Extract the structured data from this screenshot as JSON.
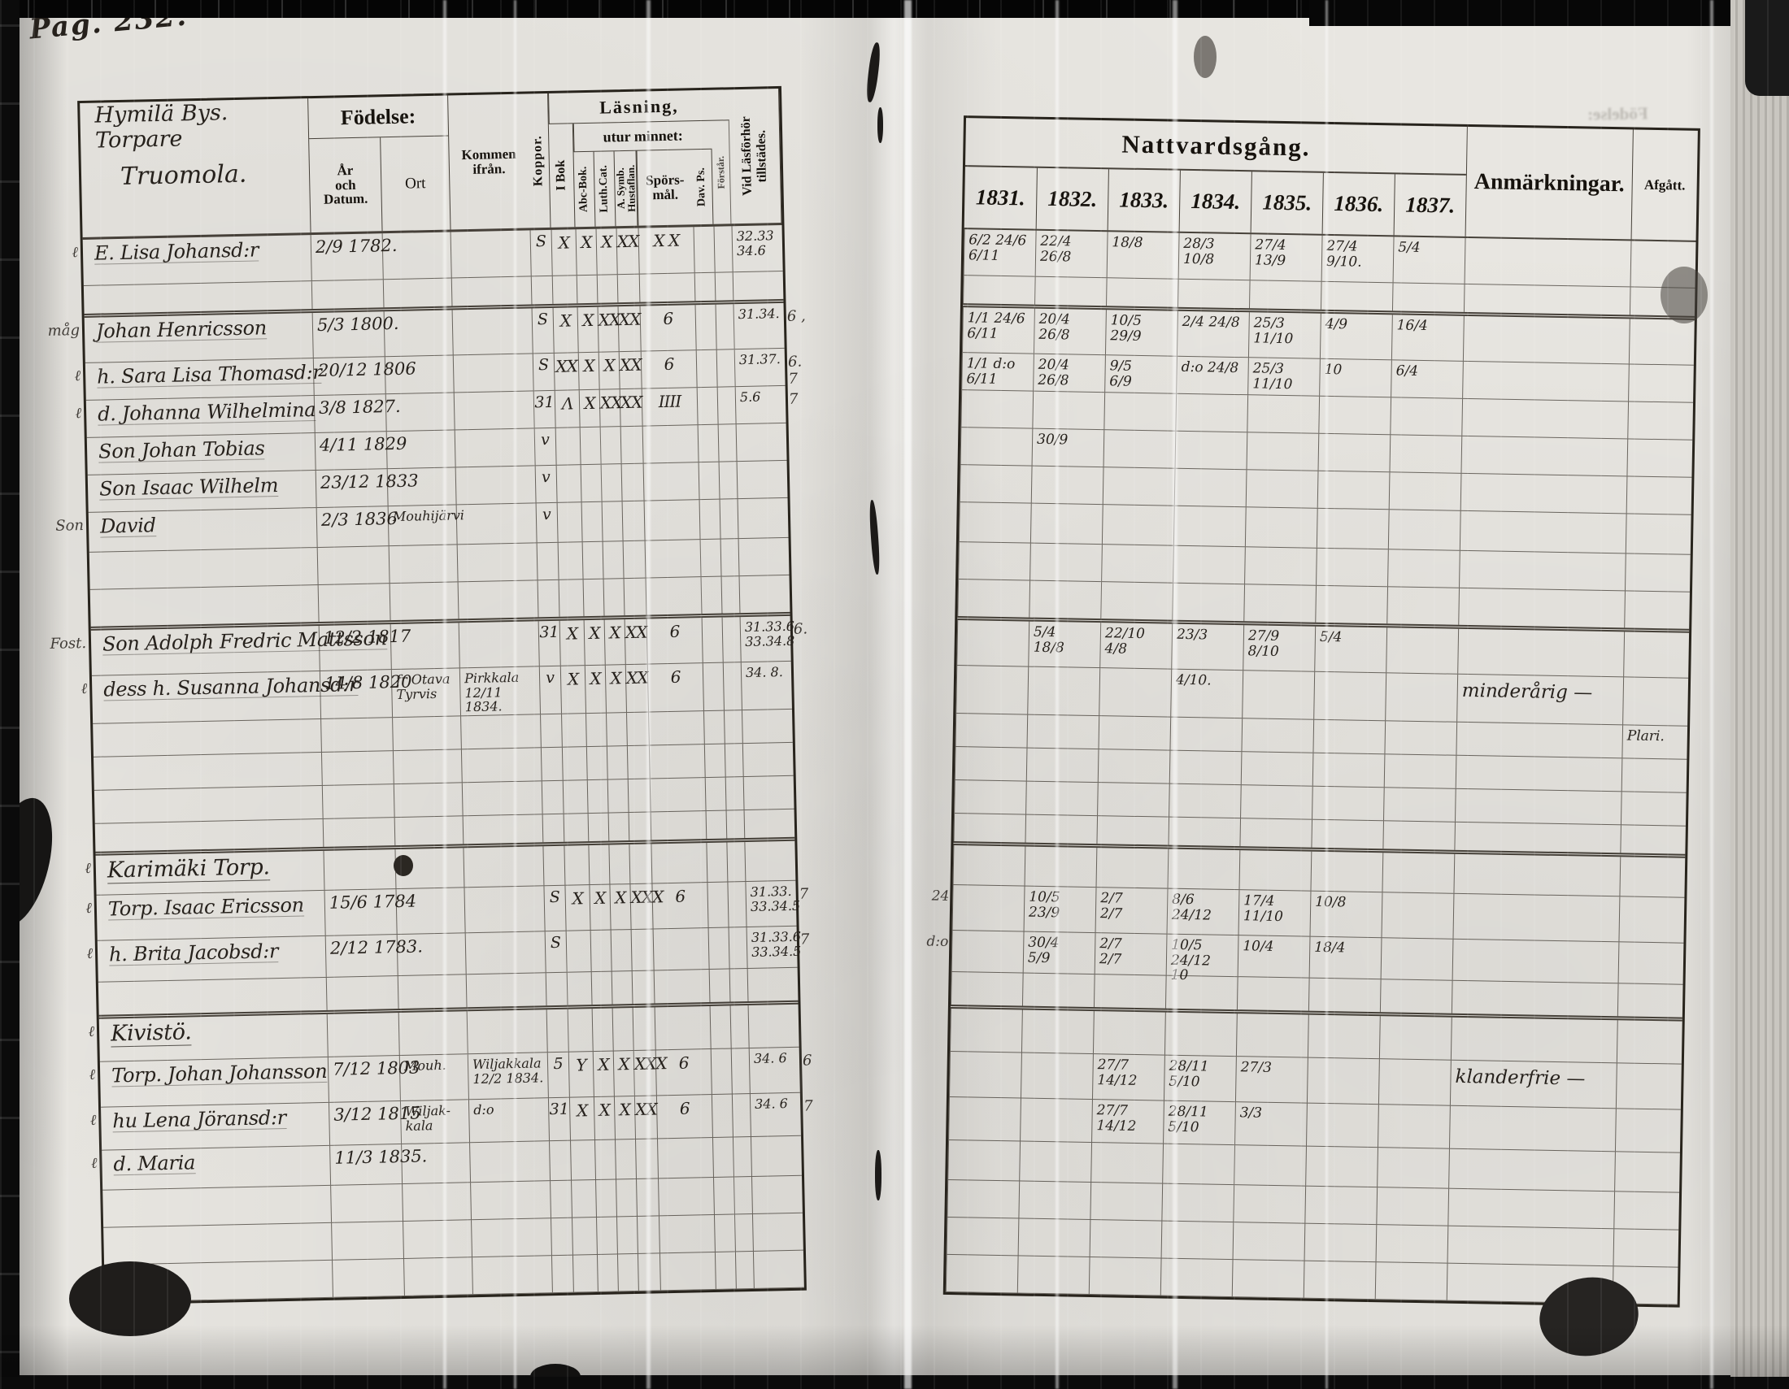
{
  "page": {
    "label": "Pag. 232."
  },
  "artifacts": {
    "bleed_text": "Födelse:"
  },
  "left_table": {
    "title_lines": [
      "Hymilä Bys.",
      "Torpare",
      "Truomola."
    ],
    "headers": {
      "fodelse": "Födelse:",
      "ar": "År\noch\nDatum.",
      "ort": "Ort",
      "kommen": "Kommen\nifrån.",
      "koppor": "Koppor.",
      "lasning": "Läsning,",
      "utur": "utur minnet:",
      "ibok": "I Bok",
      "abc": "Abc-Bok.",
      "luth": "Luth.Cat.",
      "hust": "A. Symb.\nHustaflan.",
      "spors": "Spörs-\nmål.",
      "davps": "Dav. Ps.",
      "extra": "Förstår.",
      "lasforhor": "Vid Läsförhör\ntillstädes."
    }
  },
  "right_table": {
    "title": "Nattvardsgång.",
    "years": [
      "1831.",
      "1832.",
      "1833.",
      "1834.",
      "1835.",
      "1836.",
      "1837."
    ],
    "anm": "Anmärkningar.",
    "afgatt": "Afgått."
  },
  "rows": [
    {
      "lm": "ℓ",
      "name": "E. Lisa Johansd:r",
      "date": "2/9 1782.",
      "koppor": "S",
      "cells": [
        "X",
        "X",
        "X",
        "XX",
        "X X",
        "",
        ""
      ],
      "lf": "32.33\n34.6",
      "r": {
        "y": [
          "6/2 24/6\n6/11",
          "22/4\n26/8",
          "18/8",
          "28/3\n10/8",
          "27/4\n13/9",
          "27/4 9/10.",
          "5/4"
        ]
      }
    },
    {},
    {
      "lm": "måg",
      "name": "Johan Henricsson",
      "date": "5/3 1800.",
      "koppor": "S",
      "cells": [
        "X",
        "X",
        "XX",
        "XX",
        "6",
        "",
        ""
      ],
      "lf": "31.34.",
      "rm": "6 ,",
      "r": {
        "y": [
          "1/1 24/6\n6/11",
          "20/4\n26/8",
          "10/5\n29/9",
          "2/4 24/8",
          "25/3\n11/10",
          "4/9",
          "16/4"
        ]
      }
    },
    {
      "lm": "ℓ",
      "name": "h. Sara Lisa Thomasd:r",
      "date": "20/12 1806",
      "koppor": "S",
      "cells": [
        "XX",
        "X",
        "X",
        "XX",
        "6",
        "",
        ""
      ],
      "lf": "31.37.",
      "rm": "6. 7",
      "r": {
        "y": [
          "1/1 d:o\n6/11",
          "20/4\n26/8",
          "9/5\n6/9",
          "d:o 24/8",
          "25/3\n11/10",
          "10",
          "6/4"
        ]
      }
    },
    {
      "lm": "ℓ",
      "name": "d. Johanna Wilhelmina",
      "date": "3/8 1827.",
      "koppor": "31",
      "cells": [
        "Λ",
        "X",
        "XX",
        "XX",
        "IIII",
        "",
        ""
      ],
      "lf": "5.6",
      "rm": "7",
      "r": {}
    },
    {
      "name": "Son Johan Tobias",
      "date": "4/11 1829",
      "koppor": "v",
      "cells": [
        "",
        "",
        "",
        "",
        "",
        "",
        ""
      ],
      "r": {
        "y": [
          "",
          "30/9",
          "",
          "",
          "",
          "",
          ""
        ]
      }
    },
    {
      "name": "Son Isaac Wilhelm",
      "date": "23/12 1833",
      "koppor": "v",
      "r": {}
    },
    {
      "lm": "Son",
      "name": "David",
      "date": "2/3 1836",
      "ort": "Mouhijärvi",
      "koppor": "v",
      "r": {}
    },
    {},
    {},
    {
      "lm": "Fost.",
      "name": "Son Adolph Fredric Mattsson",
      "date": "12/2 1817",
      "koppor": "31",
      "cells": [
        "X",
        "X",
        "X",
        "XX",
        "6",
        "",
        ""
      ],
      "lf": "31.33.6\n33.34.8",
      "rm": "6.",
      "r": {
        "y": [
          "",
          "5/4\n18/8",
          "22/10\n4/8",
          "23/3",
          "27/9\n8/10",
          "5/4",
          ""
        ]
      }
    },
    {
      "lm": "ℓ",
      "name": "dess h. Susanna Johansd:r",
      "date": "14/8 1820",
      "ort": "fr Otava\nTyrvis",
      "kommen": "Pirkkala\n12/11 1834.",
      "koppor": "v",
      "cells": [
        "X",
        "X",
        "X",
        "XX",
        "6",
        "",
        ""
      ],
      "lf": "34. 8.",
      "r": {
        "y": [
          "",
          "",
          "",
          "4/10.",
          "",
          "",
          ""
        ],
        "anm": "minderårig —"
      }
    },
    {
      "r": {
        "af": "Plari."
      }
    },
    {},
    {},
    {},
    {
      "sec": true,
      "lm": "ℓ",
      "name": "Karimäki Torp.",
      "r": {}
    },
    {
      "lm": "ℓ",
      "name": "Torp. Isaac Ericsson",
      "date": "15/6 1784",
      "koppor": "S",
      "cells": [
        "X",
        "X",
        "X",
        "XXX",
        "6",
        "",
        ""
      ],
      "lf": "31.33.\n33.34.5",
      "rm": "7",
      "r": {
        "rm": "24",
        "y": [
          "",
          "10/5\n23/9",
          "2/7\n2/7",
          "8/6 24/12",
          "17/4\n11/10",
          "10/8",
          ""
        ]
      }
    },
    {
      "lm": "ℓ",
      "name": "h. Brita Jacobsd:r",
      "date": "2/12 1783.",
      "koppor": "S",
      "cells": [
        "",
        "",
        "",
        "",
        "",
        "",
        ""
      ],
      "lf": "31.33.6\n33.34.5",
      "rm": "7",
      "r": {
        "rm": "d:o",
        "y": [
          "",
          "30/4\n5/9",
          "2/7\n2/7",
          "10/5 24/12\n10",
          "10/4",
          "18/4",
          ""
        ]
      }
    },
    {},
    {
      "sec": true,
      "lm": "ℓ",
      "name": "Kivistö.",
      "r": {}
    },
    {
      "lm": "ℓ",
      "name": "Torp. Johan Johansson",
      "date": "7/12 1803",
      "ort": "Mouh.",
      "kommen": "Wiljakkala\n12/2 1834.",
      "koppor": "5",
      "cells": [
        "Y",
        "X",
        "X",
        "XXX",
        "6",
        "",
        ""
      ],
      "lf": "34. 6",
      "rm": "6",
      "r": {
        "y": [
          "",
          "",
          "27/7\n14/12",
          "28/11\n5/10",
          "27/3",
          "",
          ""
        ],
        "anm": "klanderfrie —"
      }
    },
    {
      "lm": "ℓ",
      "name": "hu Lena Jöransd:r",
      "date": "3/12 1815",
      "ort": "Wiljak-\nkala",
      "kommen": "d:o",
      "koppor": "31",
      "cells": [
        "X",
        "X",
        "X",
        "XX",
        "6",
        "",
        ""
      ],
      "lf": "34. 6",
      "rm": "7",
      "r": {
        "y": [
          "",
          "",
          "27/7\n14/12",
          "28/11\n5/10",
          "3/3",
          "",
          ""
        ]
      }
    },
    {
      "lm": "ℓ",
      "name": "d. Maria",
      "date": "11/3 1835.",
      "r": {}
    },
    {},
    {},
    {}
  ]
}
